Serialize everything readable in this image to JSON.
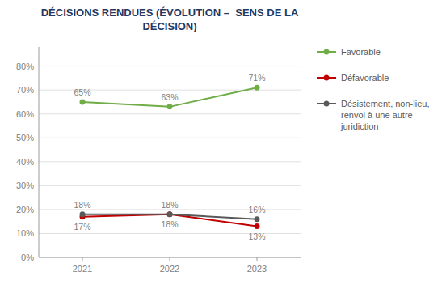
{
  "chart_data": {
    "type": "line",
    "title": "DÉCISIONS RENDUES (ÉVOLUTION –  SENS DE LA\nDÉCISION)",
    "x": [
      2021,
      2022,
      2023
    ],
    "series": [
      {
        "name": "Favorable",
        "color": "#70AD47",
        "marker": "circle",
        "values": [
          65,
          63,
          71
        ],
        "value_labels": [
          "65%",
          "63%",
          "71%"
        ]
      },
      {
        "name": "Défavorable",
        "color": "#C00000",
        "marker": "circle",
        "values": [
          17,
          18,
          13
        ],
        "value_labels": [
          "17%",
          "18%",
          "13%"
        ]
      },
      {
        "name": "Désistement, non-lieu,\nrenvoi à une autre\njuridiction",
        "color": "#595959",
        "marker": "circle",
        "values": [
          18,
          18,
          16
        ],
        "value_labels": [
          "18%",
          "18%",
          "16%"
        ]
      }
    ],
    "xlim": [
      2020.5,
      2023.5
    ],
    "xticks": [
      2021,
      2022,
      2023
    ],
    "ylim": [
      0,
      88
    ],
    "yticks": [
      {
        "value": 0,
        "label": "0%"
      },
      {
        "value": 10,
        "label": "10%"
      },
      {
        "value": 20,
        "label": "20%"
      },
      {
        "value": 30,
        "label": "30%"
      },
      {
        "value": 40,
        "label": "40%"
      },
      {
        "value": 50,
        "label": "50%"
      },
      {
        "value": 60,
        "label": "60%"
      },
      {
        "value": 70,
        "label": "70%"
      },
      {
        "value": 80,
        "label": "80%"
      }
    ],
    "grid": true,
    "legend": "right",
    "data_labels": true
  }
}
